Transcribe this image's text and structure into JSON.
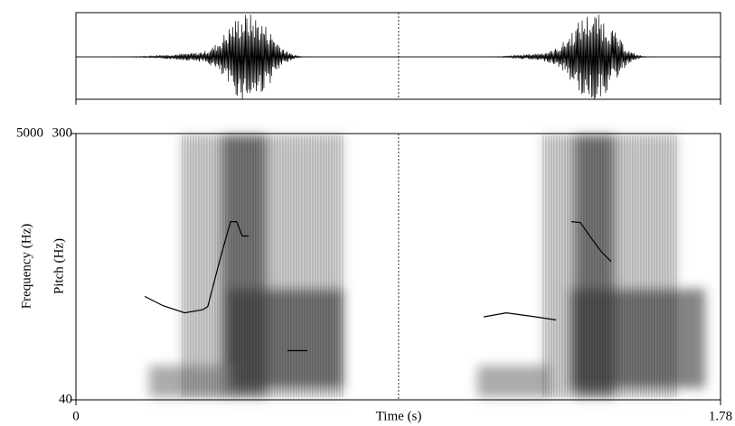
{
  "chart_data": {
    "type": "spectrogram",
    "x_label": "Time (s)",
    "y_label": "Frequency (Hz)",
    "y2_label": "Pitch (Hz)",
    "xlim": [
      0,
      1.78
    ],
    "xticks": [
      0,
      1.78
    ],
    "ylim": [
      0,
      5000
    ],
    "yticks": [
      5000
    ],
    "y2lim": [
      40,
      300
    ],
    "y2ticks": [
      40,
      300
    ],
    "cursor": 0.891,
    "series": [
      {
        "name": "Pitch",
        "color": "#000000",
        "axis": "y2",
        "x": [
          0.19,
          0.24,
          0.3,
          0.35,
          0.364,
          0.4,
          0.427,
          0.444,
          0.459,
          0.477,
          null,
          0.584,
          0.639,
          null,
          1.126,
          1.188,
          1.251,
          1.326,
          null,
          1.368,
          1.393,
          1.425,
          1.45,
          1.478
        ],
        "values": [
          141,
          132,
          125,
          128,
          131,
          180,
          214,
          214,
          200,
          200,
          null,
          88,
          88,
          null,
          121,
          125,
          122,
          118,
          null,
          214,
          213,
          197,
          185,
          175
        ]
      }
    ]
  }
}
